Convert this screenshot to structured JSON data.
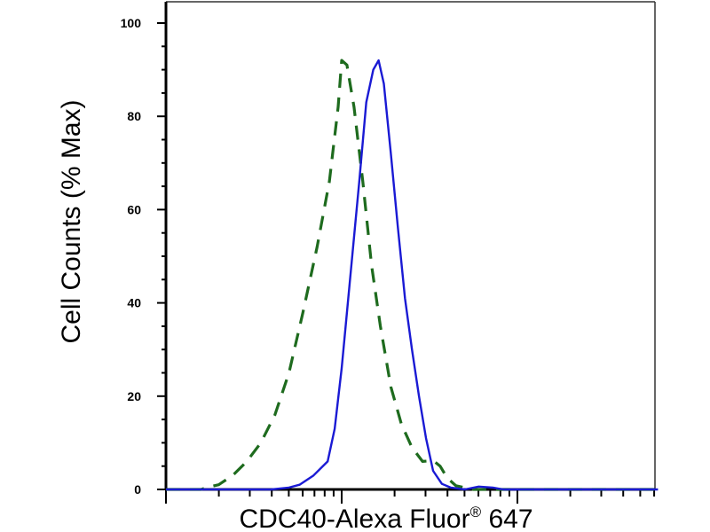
{
  "chart_data": {
    "type": "line",
    "xlabel_main": "CDC40-Alexa Fluor",
    "xlabel_sup": "®",
    "xlabel_tail": " 647",
    "ylabel": "Cell Counts (% Max)",
    "ylim": [
      0,
      100
    ],
    "yticks": [
      0,
      20,
      40,
      60,
      80,
      100
    ],
    "x_decades": [
      0,
      1,
      2,
      3
    ],
    "x_major_decades": [
      0,
      1,
      2
    ],
    "xscale": "log",
    "grid": false,
    "legend": "none",
    "series": [
      {
        "style": "dashed",
        "color": "#1e6b1e",
        "points": [
          [
            0.0,
            0.0
          ],
          [
            0.2,
            0.0
          ],
          [
            0.24,
            0.5
          ],
          [
            0.3,
            1.0
          ],
          [
            0.38,
            3.0
          ],
          [
            0.46,
            6.0
          ],
          [
            0.54,
            10.0
          ],
          [
            0.62,
            16.0
          ],
          [
            0.7,
            25.0
          ],
          [
            0.78,
            38.0
          ],
          [
            0.86,
            52.0
          ],
          [
            0.93,
            66.0
          ],
          [
            0.98,
            82.0
          ],
          [
            1.0,
            92.0
          ],
          [
            1.03,
            91.0
          ],
          [
            1.07,
            82.0
          ],
          [
            1.12,
            66.0
          ],
          [
            1.17,
            48.0
          ],
          [
            1.22,
            35.0
          ],
          [
            1.28,
            22.0
          ],
          [
            1.34,
            14.0
          ],
          [
            1.4,
            9.0
          ],
          [
            1.46,
            6.0
          ],
          [
            1.52,
            6.2
          ],
          [
            1.56,
            5.0
          ],
          [
            1.6,
            2.5
          ],
          [
            1.65,
            0.8
          ],
          [
            1.75,
            0.0
          ],
          [
            2.0,
            0.0
          ],
          [
            2.8,
            0.0
          ]
        ]
      },
      {
        "style": "solid",
        "color": "#1a1ad4",
        "points": [
          [
            0.0,
            0.0
          ],
          [
            0.6,
            0.0
          ],
          [
            0.7,
            0.4
          ],
          [
            0.76,
            1.0
          ],
          [
            0.84,
            3.0
          ],
          [
            0.92,
            6.0
          ],
          [
            0.96,
            13.0
          ],
          [
            1.0,
            26.0
          ],
          [
            1.05,
            46.0
          ],
          [
            1.1,
            66.0
          ],
          [
            1.14,
            83.0
          ],
          [
            1.18,
            90.0
          ],
          [
            1.21,
            92.0
          ],
          [
            1.24,
            87.0
          ],
          [
            1.28,
            72.0
          ],
          [
            1.32,
            56.0
          ],
          [
            1.36,
            41.0
          ],
          [
            1.4,
            30.0
          ],
          [
            1.44,
            20.0
          ],
          [
            1.48,
            11.0
          ],
          [
            1.52,
            4.0
          ],
          [
            1.57,
            1.2
          ],
          [
            1.62,
            0.4
          ],
          [
            1.7,
            0.0
          ],
          [
            1.78,
            0.6
          ],
          [
            1.86,
            0.4
          ],
          [
            1.92,
            0.0
          ],
          [
            2.3,
            0.0
          ],
          [
            2.8,
            0.0
          ]
        ]
      }
    ]
  }
}
